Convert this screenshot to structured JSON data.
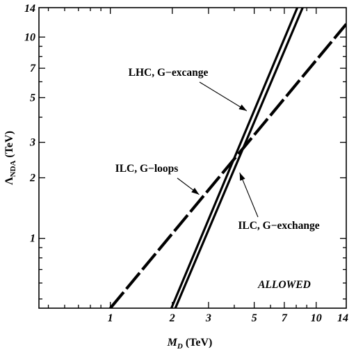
{
  "chart_data": {
    "type": "line",
    "title": "",
    "xlabel": {
      "italic": "M",
      "sub": "D",
      "rest": " (TeV)"
    },
    "ylabel": {
      "main": "Λ",
      "sub": "NDA",
      "rest": " (TeV)"
    },
    "xscale": "log",
    "yscale": "log",
    "xlim": [
      0.45,
      14
    ],
    "ylim": [
      0.45,
      14
    ],
    "xticks": [
      1,
      2,
      3,
      5,
      7,
      10,
      14
    ],
    "yticks": [
      1,
      2,
      3,
      5,
      7,
      10,
      14
    ],
    "series": [
      {
        "line": "dashed",
        "points": [
          [
            1,
            0.45
          ],
          [
            14,
            11.6
          ]
        ]
      },
      {
        "line": "solid",
        "points": [
          [
            1.98,
            0.45
          ],
          [
            8.1,
            14
          ]
        ]
      },
      {
        "line": "solid",
        "points": [
          [
            2.07,
            0.45
          ],
          [
            8.6,
            14
          ]
        ]
      }
    ],
    "annotations": [
      {
        "text": "LHC, G−excange",
        "arrow_to": [
          4.6,
          4.3
        ]
      },
      {
        "text": "ILC, G−loops",
        "arrow_to": [
          2.7,
          1.65
        ]
      },
      {
        "text": "ILC, G−exchange",
        "arrow_to": [
          4.25,
          2.12
        ]
      }
    ],
    "region_label": "ALLOWED",
    "grid": false,
    "legend": "none"
  }
}
